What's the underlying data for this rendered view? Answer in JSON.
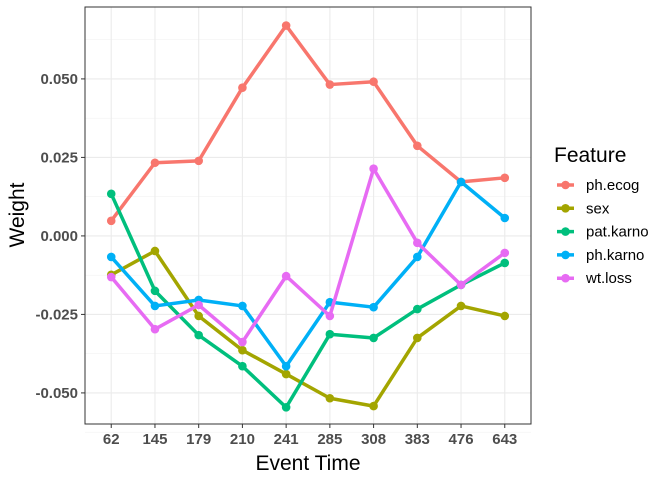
{
  "chart_data": {
    "type": "line",
    "xlabel": "Event Time",
    "ylabel": "Weight",
    "categories": [
      "62",
      "145",
      "179",
      "210",
      "241",
      "285",
      "308",
      "383",
      "476",
      "643"
    ],
    "ylim": [
      -0.0599,
      0.0729
    ],
    "yticks": [
      "0.050",
      "0.025",
      "0.000",
      "-0.025",
      "-0.050"
    ],
    "ytick_values": [
      0.05,
      0.025,
      0,
      -0.025,
      -0.05
    ],
    "grid": true,
    "legend": {
      "title": "Feature",
      "placement": "right"
    },
    "series": [
      {
        "name": "ph.ecog",
        "color": "#F8766D",
        "values": [
          0.0048,
          0.0233,
          0.0239,
          0.0472,
          0.067,
          0.0482,
          0.0491,
          0.0287,
          0.0172,
          0.0185
        ]
      },
      {
        "name": "sex",
        "color": "#A3A500",
        "values": [
          -0.0124,
          -0.0048,
          -0.0255,
          -0.0364,
          -0.044,
          -0.0517,
          -0.0542,
          -0.0325,
          -0.0223,
          -0.0255
        ]
      },
      {
        "name": "pat.karno",
        "color": "#00BF7D",
        "values": [
          0.0134,
          -0.0175,
          -0.0316,
          -0.0415,
          -0.0546,
          -0.0313,
          -0.0325,
          -0.0233,
          -0.0156,
          -0.0086
        ]
      },
      {
        "name": "ph.karno",
        "color": "#00B0F6",
        "values": [
          -0.0067,
          -0.0223,
          -0.0204,
          -0.0223,
          -0.0415,
          -0.0211,
          -0.0227,
          -0.0067,
          0.0172,
          0.0057
        ]
      },
      {
        "name": "wt.loss",
        "color": "#E76BF3",
        "values": [
          -0.0131,
          -0.0297,
          -0.022,
          -0.0338,
          -0.0128,
          -0.0255,
          0.0214,
          -0.0022,
          -0.0156,
          -0.0054
        ]
      }
    ]
  }
}
